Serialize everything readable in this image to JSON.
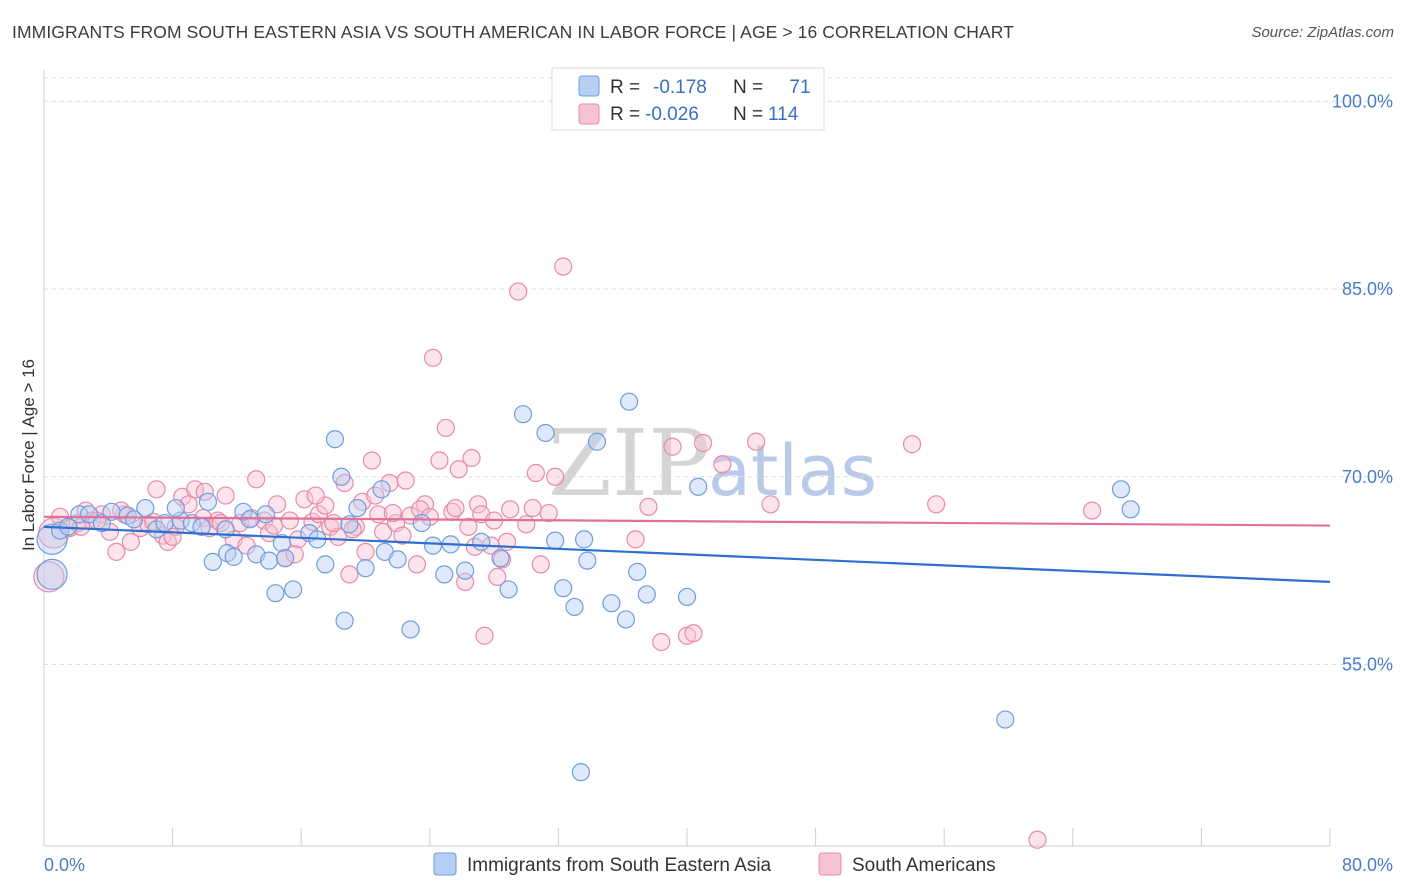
{
  "title": "IMMIGRANTS FROM SOUTH EASTERN ASIA VS SOUTH AMERICAN IN LABOR FORCE | AGE > 16 CORRELATION CHART",
  "source": "Source: ZipAtlas.com",
  "watermark": {
    "zip": "ZIP",
    "atlas": "atlas"
  },
  "chart_data": {
    "type": "scatter",
    "title": "IMMIGRANTS FROM SOUTH EASTERN ASIA VS SOUTH AMERICAN IN LABOR FORCE | AGE > 16 CORRELATION CHART",
    "xlabel": "",
    "ylabel": "In Labor Force | Age > 16",
    "xlim": [
      0,
      80
    ],
    "ylim": [
      40.5,
      102.5
    ],
    "x_tick_labels": [
      "0.0%",
      "80.0%"
    ],
    "y_ticks": [
      55,
      70,
      85,
      100
    ],
    "y_tick_labels": [
      "55.0%",
      "70.0%",
      "85.0%",
      "100.0%"
    ],
    "grid": "horizontal dashed",
    "legend_position": "top-center",
    "series": [
      {
        "name": "Immigrants from South Eastern Asia",
        "color": "#6f9de0",
        "fill": "#b7cff2",
        "R": "-0.178",
        "N": "71",
        "trend": {
          "x": [
            0,
            80
          ],
          "y": [
            66.0,
            61.6
          ]
        },
        "points": [
          [
            0.5,
            65.0
          ],
          [
            0.5,
            62.2
          ],
          [
            1.0,
            65.7
          ],
          [
            1.5,
            66.0
          ],
          [
            2.2,
            67.0
          ],
          [
            2.8,
            67.0
          ],
          [
            3.6,
            66.3
          ],
          [
            4.2,
            67.2
          ],
          [
            5.2,
            66.9
          ],
          [
            5.6,
            66.6
          ],
          [
            6.3,
            67.5
          ],
          [
            7.0,
            65.8
          ],
          [
            7.5,
            66.3
          ],
          [
            8.5,
            66.5
          ],
          [
            8.2,
            67.5
          ],
          [
            9.2,
            66.3
          ],
          [
            9.8,
            66.0
          ],
          [
            10.2,
            68.0
          ],
          [
            10.5,
            63.2
          ],
          [
            11.3,
            65.8
          ],
          [
            11.4,
            63.9
          ],
          [
            11.8,
            63.6
          ],
          [
            12.4,
            67.2
          ],
          [
            12.8,
            66.6
          ],
          [
            13.2,
            63.8
          ],
          [
            13.8,
            67.0
          ],
          [
            14.0,
            63.3
          ],
          [
            14.4,
            60.7
          ],
          [
            14.8,
            64.7
          ],
          [
            15.0,
            63.5
          ],
          [
            15.5,
            61.0
          ],
          [
            16.5,
            65.5
          ],
          [
            17.0,
            65.0
          ],
          [
            17.5,
            63.0
          ],
          [
            18.1,
            73.0
          ],
          [
            18.5,
            70.0
          ],
          [
            18.7,
            58.5
          ],
          [
            19.0,
            66.2
          ],
          [
            19.5,
            67.5
          ],
          [
            20.0,
            62.7
          ],
          [
            21.0,
            69.0
          ],
          [
            21.2,
            64.0
          ],
          [
            22.0,
            63.4
          ],
          [
            22.8,
            57.8
          ],
          [
            23.5,
            66.3
          ],
          [
            24.2,
            64.5
          ],
          [
            24.9,
            62.2
          ],
          [
            25.3,
            64.6
          ],
          [
            26.2,
            62.5
          ],
          [
            27.2,
            64.8
          ],
          [
            28.4,
            63.5
          ],
          [
            28.9,
            61.0
          ],
          [
            29.8,
            75.0
          ],
          [
            31.2,
            73.5
          ],
          [
            32.3,
            61.1
          ],
          [
            33.0,
            59.6
          ],
          [
            33.8,
            63.3
          ],
          [
            34.4,
            72.8
          ],
          [
            35.3,
            59.9
          ],
          [
            36.4,
            76.0
          ],
          [
            36.9,
            62.4
          ],
          [
            37.5,
            60.6
          ],
          [
            40.7,
            69.2
          ],
          [
            31.8,
            64.9
          ],
          [
            33.6,
            65.0
          ],
          [
            36.2,
            58.6
          ],
          [
            40.0,
            60.4
          ],
          [
            59.8,
            50.6
          ],
          [
            67.0,
            69.0
          ],
          [
            67.6,
            67.4
          ],
          [
            33.4,
            46.4
          ]
        ]
      },
      {
        "name": "South Americans",
        "color": "#e88aa8",
        "fill": "#f6c3d3",
        "R": "-0.026",
        "N": "114",
        "trend": {
          "x": [
            0,
            80
          ],
          "y": [
            66.8,
            66.1
          ]
        },
        "points": [
          [
            0.3,
            62.0
          ],
          [
            0.6,
            65.5
          ],
          [
            1.0,
            66.8
          ],
          [
            1.6,
            65.9
          ],
          [
            2.1,
            66.3
          ],
          [
            2.6,
            67.3
          ],
          [
            3.0,
            66.5
          ],
          [
            3.6,
            67.0
          ],
          [
            4.1,
            65.6
          ],
          [
            4.5,
            64.0
          ],
          [
            5.0,
            67.0
          ],
          [
            5.4,
            64.8
          ],
          [
            6.0,
            65.9
          ],
          [
            6.5,
            66.2
          ],
          [
            7.0,
            69.0
          ],
          [
            7.4,
            65.3
          ],
          [
            7.7,
            64.8
          ],
          [
            8.2,
            66.0
          ],
          [
            8.6,
            68.4
          ],
          [
            9.0,
            67.8
          ],
          [
            9.4,
            69.0
          ],
          [
            9.9,
            66.7
          ],
          [
            10.3,
            65.9
          ],
          [
            10.8,
            66.5
          ],
          [
            11.3,
            68.5
          ],
          [
            11.8,
            65.0
          ],
          [
            12.2,
            66.3
          ],
          [
            12.6,
            64.5
          ],
          [
            13.2,
            69.8
          ],
          [
            13.7,
            66.5
          ],
          [
            14.0,
            65.5
          ],
          [
            14.5,
            67.8
          ],
          [
            15.0,
            63.5
          ],
          [
            15.3,
            66.5
          ],
          [
            15.8,
            65.0
          ],
          [
            16.2,
            68.2
          ],
          [
            16.7,
            66.4
          ],
          [
            17.1,
            67.0
          ],
          [
            17.5,
            67.7
          ],
          [
            17.8,
            66.0
          ],
          [
            18.3,
            65.2
          ],
          [
            18.7,
            69.5
          ],
          [
            19.0,
            62.2
          ],
          [
            19.4,
            66.0
          ],
          [
            19.8,
            68.0
          ],
          [
            20.0,
            64.0
          ],
          [
            20.4,
            71.3
          ],
          [
            20.8,
            67.0
          ],
          [
            21.1,
            65.6
          ],
          [
            21.5,
            69.5
          ],
          [
            21.9,
            66.3
          ],
          [
            22.3,
            65.3
          ],
          [
            22.8,
            66.9
          ],
          [
            23.2,
            63.0
          ],
          [
            23.7,
            67.8
          ],
          [
            24.2,
            79.5
          ],
          [
            24.6,
            71.3
          ],
          [
            25.0,
            73.9
          ],
          [
            25.4,
            67.2
          ],
          [
            25.8,
            70.6
          ],
          [
            26.2,
            61.6
          ],
          [
            26.6,
            71.5
          ],
          [
            27.0,
            67.8
          ],
          [
            27.4,
            57.3
          ],
          [
            27.8,
            64.5
          ],
          [
            28.2,
            62.0
          ],
          [
            28.5,
            63.4
          ],
          [
            29.0,
            67.4
          ],
          [
            29.5,
            84.8
          ],
          [
            30.0,
            66.2
          ],
          [
            30.4,
            67.5
          ],
          [
            30.9,
            63.0
          ],
          [
            31.4,
            67.1
          ],
          [
            31.8,
            70.0
          ],
          [
            32.3,
            86.8
          ],
          [
            26.8,
            64.4
          ],
          [
            36.8,
            65.0
          ],
          [
            37.6,
            67.6
          ],
          [
            38.4,
            56.8
          ],
          [
            39.1,
            72.4
          ],
          [
            40.0,
            57.3
          ],
          [
            40.4,
            57.5
          ],
          [
            41.0,
            72.7
          ],
          [
            42.2,
            71.0
          ],
          [
            44.3,
            72.8
          ],
          [
            45.2,
            67.8
          ],
          [
            54.0,
            72.6
          ],
          [
            55.5,
            67.8
          ],
          [
            61.8,
            41.0
          ],
          [
            65.2,
            67.3
          ],
          [
            3.3,
            66.5
          ],
          [
            2.3,
            66.0
          ],
          [
            4.8,
            67.3
          ],
          [
            6.8,
            66.4
          ],
          [
            8.0,
            65.2
          ],
          [
            10.0,
            68.8
          ],
          [
            11.0,
            66.3
          ],
          [
            12.9,
            66.7
          ],
          [
            14.3,
            66.1
          ],
          [
            15.6,
            63.8
          ],
          [
            16.9,
            68.5
          ],
          [
            18.0,
            66.3
          ],
          [
            19.2,
            65.8
          ],
          [
            20.6,
            68.5
          ],
          [
            21.7,
            67.1
          ],
          [
            22.5,
            69.7
          ],
          [
            23.4,
            67.4
          ],
          [
            24.0,
            66.8
          ],
          [
            25.6,
            67.5
          ],
          [
            26.4,
            66.0
          ],
          [
            27.2,
            67.0
          ],
          [
            28.0,
            66.5
          ],
          [
            28.8,
            64.8
          ],
          [
            30.6,
            70.3
          ]
        ]
      }
    ]
  },
  "legend": {
    "r_label": "R =",
    "n_label": "N ="
  }
}
